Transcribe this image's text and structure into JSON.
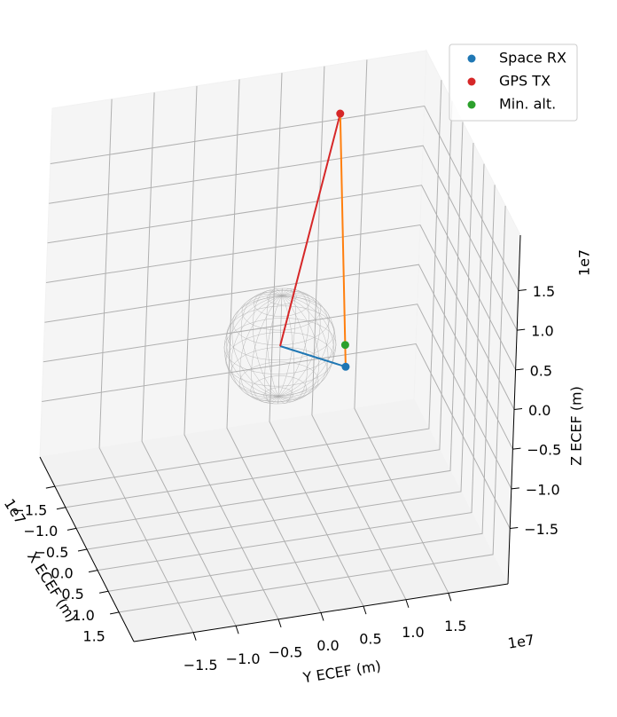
{
  "chart_data": {
    "type": "scatter3d",
    "xlabel": "X ECEF (m)",
    "ylabel": "Y ECEF (m)",
    "zlabel": "Z ECEF (m)",
    "xoffset": "1e7",
    "yoffset": "1e7",
    "zoffset": "1e7",
    "xlim": [
      -22000000,
      22000000
    ],
    "ylim": [
      -22000000,
      22000000
    ],
    "zlim": [
      -22000000,
      22000000
    ],
    "xticks": [
      {
        "value": -15000000,
        "label": "−1.5"
      },
      {
        "value": -10000000,
        "label": "−1.0"
      },
      {
        "value": -5000000,
        "label": "−0.5"
      },
      {
        "value": 0,
        "label": "0.0"
      },
      {
        "value": 5000000,
        "label": "0.5"
      },
      {
        "value": 10000000,
        "label": "1.0"
      },
      {
        "value": 15000000,
        "label": "1.5"
      }
    ],
    "yticks": [
      {
        "value": -15000000,
        "label": "−1.5"
      },
      {
        "value": -10000000,
        "label": "−1.0"
      },
      {
        "value": -5000000,
        "label": "−0.5"
      },
      {
        "value": 0,
        "label": "0.0"
      },
      {
        "value": 5000000,
        "label": "0.5"
      },
      {
        "value": 10000000,
        "label": "1.0"
      },
      {
        "value": 15000000,
        "label": "1.5"
      }
    ],
    "zticks": [
      {
        "value": -15000000,
        "label": "−1.5"
      },
      {
        "value": -10000000,
        "label": "−1.0"
      },
      {
        "value": -5000000,
        "label": "−0.5"
      },
      {
        "value": 0,
        "label": "0.0"
      },
      {
        "value": 5000000,
        "label": "0.5"
      },
      {
        "value": 10000000,
        "label": "1.0"
      },
      {
        "value": 15000000,
        "label": "1.5"
      }
    ],
    "grid": true,
    "legend": "upper right",
    "sphere": {
      "radius": 6371000,
      "color": "#aaaaaa"
    },
    "lines": [
      {
        "color": "#1f77b4",
        "x": [
          0,
          6800000
        ],
        "y": [
          0,
          6000000
        ],
        "z": [
          0,
          0
        ]
      },
      {
        "color": "#d62728",
        "x": [
          0,
          -11000000
        ],
        "y": [
          0,
          9100000
        ],
        "z": [
          0,
          22000000
        ]
      },
      {
        "color": "#ff7f0e",
        "x": [
          6800000,
          -11000000
        ],
        "y": [
          6000000,
          9100000
        ],
        "z": [
          0,
          22000000
        ]
      }
    ],
    "series": [
      {
        "name": "Space RX",
        "color": "#1f77b4",
        "x": [
          6800000
        ],
        "y": [
          6000000
        ],
        "z": [
          0
        ]
      },
      {
        "name": "GPS TX",
        "color": "#d62728",
        "x": [
          -11000000
        ],
        "y": [
          9100000
        ],
        "z": [
          22000000
        ]
      },
      {
        "name": "Min. alt.",
        "color": "#2ca02c",
        "x": [
          5260000
        ],
        "y": [
          6270000
        ],
        "z": [
          1890000
        ]
      }
    ]
  }
}
